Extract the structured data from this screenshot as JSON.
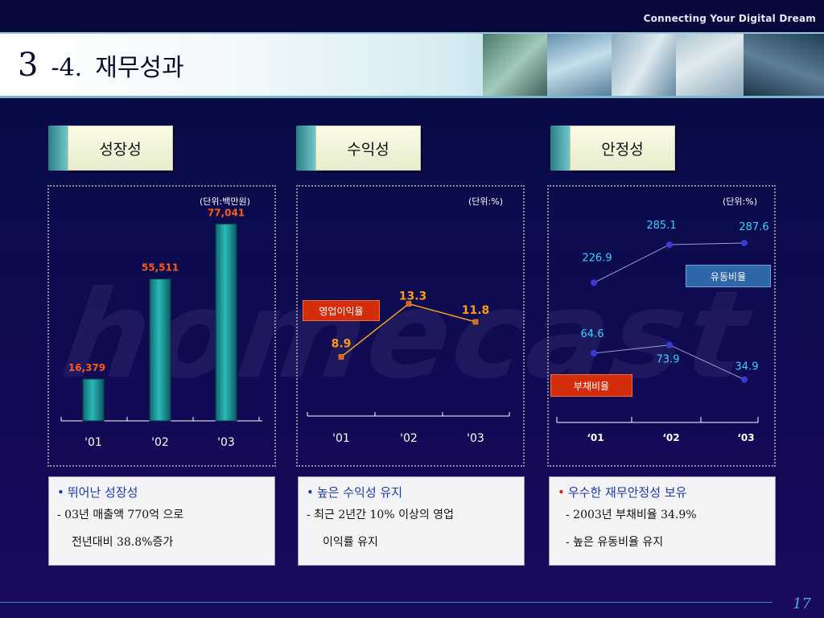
{
  "tagline": "Connecting Your Digital Dream",
  "header": {
    "section_num": "3",
    "separator": "-4.",
    "title": "재무성과"
  },
  "watermark": "homecast",
  "tabs": [
    "성장성",
    "수익성",
    "안정성"
  ],
  "page_number": "17",
  "chart_data": [
    {
      "type": "bar",
      "title": "성장성",
      "unit": "(단위:백만원)",
      "categories": [
        "'01",
        "'02",
        "'03"
      ],
      "values": [
        16379,
        55511,
        77041
      ],
      "value_labels": [
        "16,379",
        "55,511",
        "77,041"
      ],
      "ylim": [
        0,
        85000
      ],
      "grid": false
    },
    {
      "type": "line",
      "title": "수익성",
      "unit": "(단위:%)",
      "categories": [
        "'01",
        "'02",
        "'03"
      ],
      "series": [
        {
          "name": "영업이익율",
          "values": [
            8.9,
            13.3,
            11.8
          ],
          "value_labels": [
            "8.9",
            "13.3",
            "11.8"
          ],
          "color": "#f0a020"
        }
      ],
      "ylim": [
        0,
        20
      ],
      "grid": false
    },
    {
      "type": "line",
      "title": "안정성",
      "unit": "(단위:%)",
      "categories": [
        "‘01",
        "‘02",
        "‘03"
      ],
      "series": [
        {
          "name": "유동비율",
          "values": [
            226.9,
            285.1,
            287.6
          ],
          "value_labels": [
            "226.9",
            "285.1",
            "287.6"
          ],
          "color": "#3a3ad8"
        },
        {
          "name": "부채비율",
          "values": [
            64.6,
            73.9,
            34.9
          ],
          "value_labels": [
            "64.6",
            "73.9",
            "34.9"
          ],
          "color": "#3a3ad8"
        }
      ],
      "grid": false
    }
  ],
  "notes": [
    {
      "head": "뛰어난 성장성",
      "lines": [
        "- 03년 매출액 770억 으로",
        "전년대비 38.8%증가"
      ]
    },
    {
      "head": "높은 수익성 유지",
      "lines": [
        "- 최근 2년간 10% 이상의 영업",
        "이익률 유지"
      ]
    },
    {
      "head": "우수한 재무안정성 보유",
      "lines": [
        "- 2003년 부채비율 34.9%",
        "- 높은 유동비율 유지"
      ]
    }
  ],
  "colors": {
    "bar_fill": "#2ab8b8",
    "bar_value_label": "#ff5a1a",
    "profit_value_label": "#ff9a1a",
    "stability_value_label": "#3ad0ff",
    "accent_line": "#3a8fb8"
  }
}
